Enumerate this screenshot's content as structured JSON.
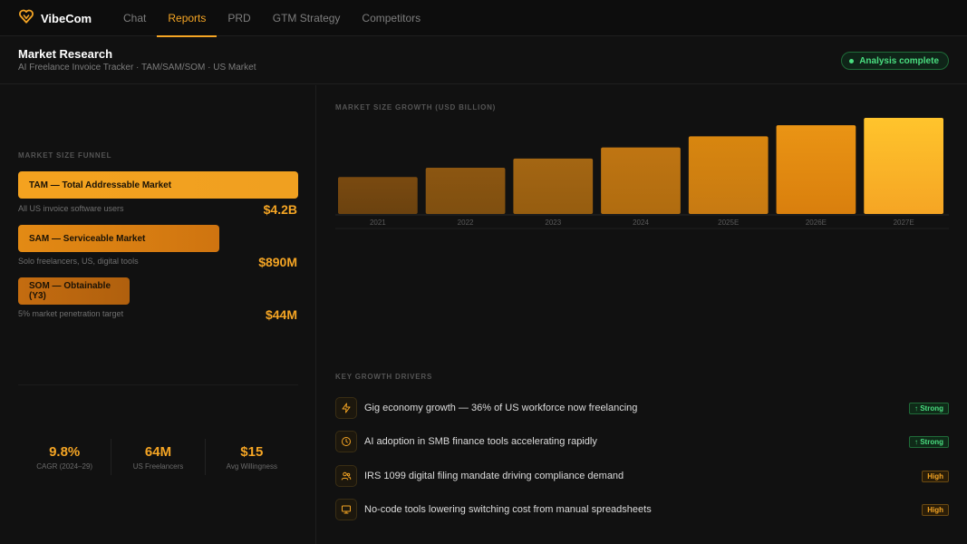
{
  "app": {
    "name": "VibeCom"
  },
  "nav": {
    "tabs": [
      "Chat",
      "Reports",
      "PRD",
      "GTM Strategy",
      "Competitors"
    ],
    "active_index": 1
  },
  "header": {
    "title": "Market Research",
    "subtitle": "AI Freelance Invoice Tracker · TAM/SAM/SOM · US Market",
    "status": "Analysis complete"
  },
  "funnel": {
    "label": "MARKET SIZE FUNNEL",
    "items": [
      {
        "name": "TAM — Total Addressable Market",
        "note": "All US invoice software users",
        "value": "$4.2B"
      },
      {
        "name": "SAM — Serviceable Market",
        "note": "Solo freelancers, US, digital tools",
        "value": "$890M"
      },
      {
        "name": "SOM — Obtainable (Y3)",
        "note": "5% market penetration target",
        "value": "$44M"
      }
    ]
  },
  "stats": [
    {
      "value": "9.8%",
      "label": "CAGR (2024–29)"
    },
    {
      "value": "64M",
      "label": "US Freelancers"
    },
    {
      "value": "$15",
      "label": "Avg Willingness"
    }
  ],
  "chart_data": {
    "type": "bar",
    "title": "MARKET SIZE GROWTH (USD BILLION)",
    "categories": [
      "2021",
      "2022",
      "2023",
      "2024",
      "2025E",
      "2026E",
      "2027E"
    ],
    "values": [
      2.0,
      2.5,
      3.0,
      3.6,
      4.2,
      4.8,
      5.2
    ],
    "xlabel": "",
    "ylabel": "",
    "ylim": [
      0,
      5.2
    ],
    "grid": false
  },
  "drivers": {
    "label": "KEY GROWTH DRIVERS",
    "items": [
      {
        "icon": "lightning-icon",
        "text": "Gig economy growth — 36% of US workforce now freelancing",
        "badge": "↑ Strong",
        "level": "strong"
      },
      {
        "icon": "clock-icon",
        "text": "AI adoption in SMB finance tools accelerating rapidly",
        "badge": "↑ Strong",
        "level": "strong"
      },
      {
        "icon": "users-icon",
        "text": "IRS 1099 digital filing mandate driving compliance demand",
        "badge": "High",
        "level": "high"
      },
      {
        "icon": "monitor-icon",
        "text": "No-code tools lowering switching cost from manual spreadsheets",
        "badge": "High",
        "level": "high"
      }
    ]
  },
  "colors": {
    "accent": "#f5a524",
    "success": "#4ade80",
    "background": "#111111"
  }
}
